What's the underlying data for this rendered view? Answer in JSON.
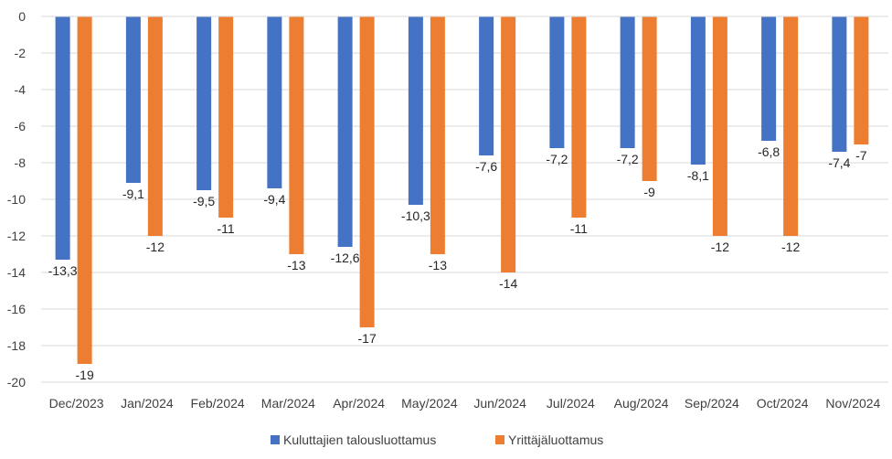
{
  "chart_data": {
    "type": "bar",
    "categories": [
      "Dec/2023",
      "Jan/2024",
      "Feb/2024",
      "Mar/2024",
      "Apr/2024",
      "May/2024",
      "Jun/2024",
      "Jul/2024",
      "Aug/2024",
      "Sep/2024",
      "Oct/2024",
      "Nov/2024"
    ],
    "series": [
      {
        "name": "Kuluttajien talousluottamus",
        "color": "#4472C4",
        "values": [
          -13.3,
          -9.1,
          -9.5,
          -9.4,
          -12.6,
          -10.3,
          -7.6,
          -7.2,
          -7.2,
          -8.1,
          -6.8,
          -7.4
        ],
        "labels": [
          "-13,3",
          "-9,1",
          "-9,5",
          "-9,4",
          "-12,6",
          "-10,3",
          "-7,6",
          "-7,2",
          "-7,2",
          "-8,1",
          "-6,8",
          "-7,4"
        ]
      },
      {
        "name": "Yrittäjäluottamus",
        "color": "#ED7D31",
        "values": [
          -19,
          -12,
          -11,
          -13,
          -17,
          -13,
          -14,
          -11,
          -9,
          -12,
          -12,
          -7
        ],
        "labels": [
          "-19",
          "-12",
          "-11",
          "-13",
          "-17",
          "-13",
          "-14",
          "-11",
          "-9",
          "-12",
          "-12",
          "-7"
        ]
      }
    ],
    "ylim": [
      -20,
      0
    ],
    "yticks": [
      0,
      -2,
      -4,
      -6,
      -8,
      -10,
      -12,
      -14,
      -16,
      -18,
      -20
    ],
    "grid": true,
    "legend_position": "bottom",
    "title": "",
    "xlabel": "",
    "ylabel": ""
  }
}
